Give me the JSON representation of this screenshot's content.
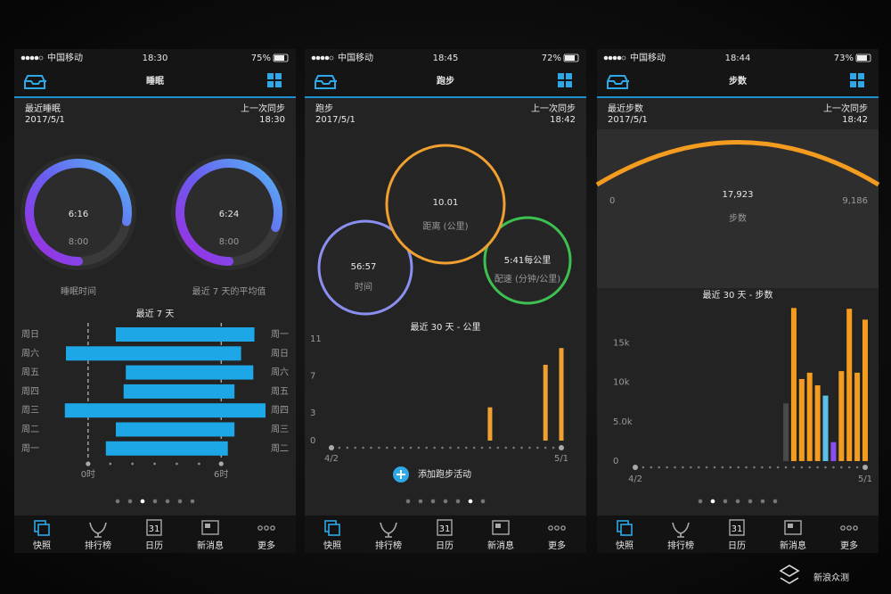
{
  "status_carrier": "中国移动",
  "tabs": [
    "快照",
    "排行榜",
    "日历",
    "新消息",
    "更多"
  ],
  "calendar_icon": "31",
  "watermark": "新浪众测",
  "sleep": {
    "status_time": "18:30",
    "battery": "75%",
    "title": "睡眠",
    "summary_label": "最近睡眠",
    "date": "2017/5/1",
    "sync_label": "上一次同步",
    "sync_time": "18:30",
    "rings": [
      {
        "value": "6:16",
        "goal": "8:00",
        "caption": "睡眠时间",
        "progress": 0.78
      },
      {
        "value": "6:24",
        "goal": "8:00",
        "caption": "最近 7 天的平均值",
        "progress": 0.8
      }
    ],
    "chart": {
      "title": "最近 7 天",
      "color": "#1ea7e6",
      "xlim": [
        -1,
        8
      ],
      "xticks": [
        {
          "value": 0,
          "label": "0时"
        },
        {
          "value": 6,
          "label": "6时"
        }
      ],
      "rows": [
        {
          "day": "周日",
          "wake_day": "周一",
          "start": 1.25,
          "end": 7.5
        },
        {
          "day": "周六",
          "wake_day": "周日",
          "start": -1.0,
          "end": 6.9
        },
        {
          "day": "周五",
          "wake_day": "周六",
          "start": 1.7,
          "end": 7.45
        },
        {
          "day": "周四",
          "wake_day": "周五",
          "start": 1.6,
          "end": 6.6
        },
        {
          "day": "周三",
          "wake_day": "周四",
          "start": -1.05,
          "end": 8.0
        },
        {
          "day": "周二",
          "wake_day": "周三",
          "start": 1.25,
          "end": 6.6
        },
        {
          "day": "周一",
          "wake_day": "周二",
          "start": 0.8,
          "end": 6.3
        }
      ]
    }
  },
  "running": {
    "status_time": "18:45",
    "battery": "72%",
    "title": "跑步",
    "summary_label": "跑步",
    "date": "2017/5/1",
    "sync_label": "上一次同步",
    "sync_time": "18:42",
    "metrics": {
      "distance": "10.01",
      "distance_label": "距离 (公里)",
      "time": "56:57",
      "time_label": "时间",
      "pace": "5:41每公里",
      "pace_label": "配速 (分钟/公里)"
    },
    "chart": {
      "title": "最近 30 天 - 公里",
      "color": "#f0a030",
      "categories": [
        "4/2",
        null,
        null,
        null,
        null,
        null,
        null,
        null,
        null,
        null,
        null,
        null,
        null,
        null,
        null,
        null,
        null,
        null,
        null,
        null,
        null,
        null,
        null,
        null,
        null,
        null,
        null,
        null,
        null,
        "5/1"
      ],
      "values": [
        null,
        null,
        null,
        null,
        null,
        null,
        null,
        null,
        null,
        null,
        null,
        null,
        null,
        null,
        null,
        null,
        null,
        null,
        null,
        null,
        3.6,
        null,
        null,
        null,
        null,
        null,
        null,
        8.2,
        null,
        10.01
      ],
      "ylim": [
        0,
        11
      ],
      "yticks": [
        0,
        3,
        7,
        11
      ]
    },
    "add_button": "添加跑步活动"
  },
  "steps": {
    "status_time": "18:44",
    "battery": "73%",
    "title": "步数",
    "summary_label": "最近步数",
    "date": "2017/5/1",
    "sync_label": "上一次同步",
    "sync_time": "18:42",
    "steps": "17,923",
    "steps_label": "步数",
    "gauge_min": "0",
    "gauge_goal": "9,186",
    "chart": {
      "title": "最近 30 天 - 步数",
      "categories": [
        "4/2",
        null,
        null,
        null,
        null,
        null,
        null,
        null,
        null,
        null,
        null,
        null,
        null,
        null,
        null,
        null,
        null,
        null,
        null,
        null,
        null,
        null,
        null,
        null,
        null,
        null,
        null,
        null,
        null,
        "5/1"
      ],
      "values": [
        null,
        null,
        null,
        null,
        null,
        null,
        null,
        null,
        null,
        null,
        null,
        null,
        null,
        null,
        null,
        null,
        null,
        null,
        null,
        7300,
        19400,
        10400,
        11200,
        9600,
        8300,
        2400,
        11400,
        19300,
        11200,
        17923
      ],
      "colors": [
        null,
        null,
        null,
        null,
        null,
        null,
        null,
        null,
        null,
        null,
        null,
        null,
        null,
        null,
        null,
        null,
        null,
        null,
        null,
        "#4a4a4a",
        "#f39c1f",
        "#f39c1f",
        "#f39c1f",
        "#f39c1f",
        "#5bc0e8",
        "#8a4df0",
        "#f39c1f",
        "#f39c1f",
        "#f39c1f",
        "#f39c1f"
      ],
      "ylim": [
        0,
        20000
      ],
      "yticks": [
        0,
        {
          "value": 5000,
          "label": "5.0k"
        },
        {
          "value": 10000,
          "label": "10k"
        },
        {
          "value": 15000,
          "label": "15k"
        }
      ]
    }
  }
}
